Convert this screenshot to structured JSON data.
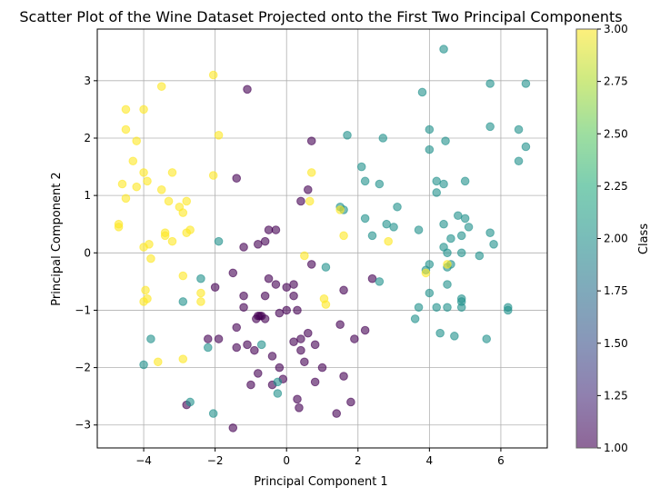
{
  "chart_data": {
    "type": "scatter",
    "title": "Scatter Plot of the Wine Dataset Projected onto the First Two Principal Components",
    "xlabel": "Principal Component 1",
    "ylabel": "Principal Component 2",
    "xlim": [
      -5.3,
      7.3
    ],
    "ylim": [
      -3.4,
      3.9
    ],
    "xticks": [
      -4,
      -2,
      0,
      2,
      4,
      6
    ],
    "yticks": [
      -3,
      -2,
      -1,
      0,
      1,
      2,
      3
    ],
    "grid": true,
    "alpha": 0.6,
    "colorbar": {
      "label": "Class",
      "range": [
        1.0,
        3.0
      ],
      "ticks": [
        1.0,
        1.25,
        1.5,
        1.75,
        2.0,
        2.25,
        2.5,
        2.75,
        3.0
      ],
      "tick_labels": [
        "1.00",
        "1.25",
        "1.50",
        "1.75",
        "2.00",
        "2.25",
        "2.50",
        "2.75",
        "3.00"
      ],
      "colormap": "viridis"
    },
    "series": [
      {
        "class": 1,
        "color": "#440154",
        "points": [
          [
            -1.1,
            2.85
          ],
          [
            -1.4,
            1.3
          ],
          [
            0.6,
            1.1
          ],
          [
            0.7,
            1.95
          ],
          [
            0.4,
            0.9
          ],
          [
            -0.5,
            0.4
          ],
          [
            -0.3,
            0.4
          ],
          [
            -0.6,
            0.2
          ],
          [
            -0.8,
            0.15
          ],
          [
            -1.2,
            0.1
          ],
          [
            -2.0,
            -0.6
          ],
          [
            -1.5,
            -0.35
          ],
          [
            -1.2,
            -0.75
          ],
          [
            -1.2,
            -0.95
          ],
          [
            -0.6,
            -0.75
          ],
          [
            -0.5,
            -0.45
          ],
          [
            -0.3,
            -0.55
          ],
          [
            0.0,
            -0.6
          ],
          [
            0.2,
            -0.55
          ],
          [
            0.2,
            -0.75
          ],
          [
            0.7,
            -0.2
          ],
          [
            1.6,
            -0.65
          ],
          [
            2.4,
            -0.45
          ],
          [
            0.3,
            -1.0
          ],
          [
            0.0,
            -1.0
          ],
          [
            -0.2,
            -1.05
          ],
          [
            -0.7,
            -1.1
          ],
          [
            -0.75,
            -1.1
          ],
          [
            -0.8,
            -1.1
          ],
          [
            -0.85,
            -1.15
          ],
          [
            -0.6,
            -1.15
          ],
          [
            -1.4,
            -1.3
          ],
          [
            -2.2,
            -1.5
          ],
          [
            -1.9,
            -1.5
          ],
          [
            -1.4,
            -1.65
          ],
          [
            -1.1,
            -1.6
          ],
          [
            -0.9,
            -1.7
          ],
          [
            -0.8,
            -2.1
          ],
          [
            -0.4,
            -1.8
          ],
          [
            0.2,
            -1.55
          ],
          [
            0.4,
            -1.5
          ],
          [
            0.6,
            -1.4
          ],
          [
            0.8,
            -1.6
          ],
          [
            1.5,
            -1.25
          ],
          [
            1.9,
            -1.5
          ],
          [
            2.2,
            -1.35
          ],
          [
            0.4,
            -1.7
          ],
          [
            0.5,
            -1.9
          ],
          [
            1.0,
            -2.0
          ],
          [
            1.6,
            -2.15
          ],
          [
            1.8,
            -2.6
          ],
          [
            -0.1,
            -2.2
          ],
          [
            -0.2,
            -2.0
          ],
          [
            -0.4,
            -2.3
          ],
          [
            -1.0,
            -2.3
          ],
          [
            0.8,
            -2.25
          ],
          [
            0.3,
            -2.55
          ],
          [
            0.35,
            -2.7
          ],
          [
            1.4,
            -2.8
          ],
          [
            -1.5,
            -3.05
          ],
          [
            -2.8,
            -2.65
          ]
        ]
      },
      {
        "class": 2,
        "color": "#21918c",
        "points": [
          [
            4.4,
            3.55
          ],
          [
            5.7,
            2.95
          ],
          [
            6.7,
            2.95
          ],
          [
            3.8,
            2.8
          ],
          [
            5.7,
            2.2
          ],
          [
            6.5,
            2.15
          ],
          [
            4.0,
            2.15
          ],
          [
            2.7,
            2.0
          ],
          [
            4.45,
            1.95
          ],
          [
            1.7,
            2.05
          ],
          [
            4.0,
            1.8
          ],
          [
            6.7,
            1.85
          ],
          [
            6.5,
            1.6
          ],
          [
            2.1,
            1.5
          ],
          [
            2.2,
            1.25
          ],
          [
            2.6,
            1.2
          ],
          [
            4.2,
            1.25
          ],
          [
            4.4,
            1.2
          ],
          [
            5.0,
            1.25
          ],
          [
            4.2,
            1.05
          ],
          [
            3.1,
            0.8
          ],
          [
            1.5,
            0.8
          ],
          [
            1.6,
            0.75
          ],
          [
            2.2,
            0.6
          ],
          [
            2.8,
            0.5
          ],
          [
            3.0,
            0.45
          ],
          [
            4.4,
            0.5
          ],
          [
            4.8,
            0.65
          ],
          [
            5.0,
            0.6
          ],
          [
            5.1,
            0.45
          ],
          [
            2.4,
            0.3
          ],
          [
            3.7,
            0.4
          ],
          [
            4.6,
            0.25
          ],
          [
            4.9,
            0.3
          ],
          [
            5.7,
            0.35
          ],
          [
            4.4,
            0.1
          ],
          [
            4.5,
            0.0
          ],
          [
            4.9,
            0.0
          ],
          [
            5.4,
            -0.05
          ],
          [
            5.8,
            0.15
          ],
          [
            4.0,
            -0.2
          ],
          [
            4.6,
            -0.2
          ],
          [
            4.5,
            -0.25
          ],
          [
            3.9,
            -0.3
          ],
          [
            2.6,
            -0.5
          ],
          [
            4.5,
            -0.55
          ],
          [
            4.0,
            -0.7
          ],
          [
            4.9,
            -0.8
          ],
          [
            4.9,
            -0.85
          ],
          [
            3.7,
            -0.95
          ],
          [
            4.2,
            -0.95
          ],
          [
            4.5,
            -0.95
          ],
          [
            4.9,
            -0.95
          ],
          [
            3.6,
            -1.15
          ],
          [
            6.2,
            -0.95
          ],
          [
            6.2,
            -1.0
          ],
          [
            4.3,
            -1.4
          ],
          [
            4.7,
            -1.45
          ],
          [
            5.6,
            -1.5
          ],
          [
            1.1,
            -0.25
          ],
          [
            -2.4,
            -0.45
          ],
          [
            -2.9,
            -0.85
          ],
          [
            -1.9,
            0.2
          ],
          [
            -3.8,
            -1.5
          ],
          [
            -4.0,
            -1.95
          ],
          [
            -2.2,
            -1.65
          ],
          [
            -0.7,
            -1.6
          ],
          [
            -0.25,
            -2.25
          ],
          [
            -0.25,
            -2.45
          ],
          [
            -2.7,
            -2.6
          ],
          [
            -2.05,
            -2.8
          ]
        ]
      },
      {
        "class": 3,
        "color": "#fde725",
        "points": [
          [
            -2.05,
            3.1
          ],
          [
            -3.5,
            2.9
          ],
          [
            -4.5,
            2.5
          ],
          [
            -4.0,
            2.5
          ],
          [
            -4.5,
            2.15
          ],
          [
            -4.2,
            1.95
          ],
          [
            -1.9,
            2.05
          ],
          [
            -4.3,
            1.6
          ],
          [
            -4.0,
            1.4
          ],
          [
            -3.2,
            1.4
          ],
          [
            -2.05,
            1.35
          ],
          [
            -4.6,
            1.2
          ],
          [
            -4.2,
            1.15
          ],
          [
            -3.9,
            1.25
          ],
          [
            -3.5,
            1.1
          ],
          [
            -4.5,
            0.95
          ],
          [
            -3.3,
            0.9
          ],
          [
            -2.8,
            0.9
          ],
          [
            -3.0,
            0.8
          ],
          [
            -2.9,
            0.7
          ],
          [
            -3.4,
            0.35
          ],
          [
            -3.4,
            0.3
          ],
          [
            -2.7,
            0.4
          ],
          [
            -2.8,
            0.35
          ],
          [
            -3.2,
            0.2
          ],
          [
            -4.7,
            0.5
          ],
          [
            -4.7,
            0.45
          ],
          [
            -4.0,
            0.1
          ],
          [
            -3.85,
            0.15
          ],
          [
            -3.8,
            -0.1
          ],
          [
            -2.9,
            -0.4
          ],
          [
            -3.95,
            -0.65
          ],
          [
            -3.9,
            -0.8
          ],
          [
            -4.0,
            -0.85
          ],
          [
            -2.4,
            -0.7
          ],
          [
            -2.4,
            -0.85
          ],
          [
            -3.6,
            -1.9
          ],
          [
            -2.9,
            -1.85
          ],
          [
            0.65,
            0.9
          ],
          [
            0.7,
            1.4
          ],
          [
            0.5,
            -0.05
          ],
          [
            1.5,
            0.75
          ],
          [
            1.6,
            0.3
          ],
          [
            2.85,
            0.2
          ],
          [
            1.05,
            -0.8
          ],
          [
            1.1,
            -0.9
          ],
          [
            3.9,
            -0.35
          ],
          [
            4.5,
            -0.2
          ]
        ]
      }
    ]
  }
}
